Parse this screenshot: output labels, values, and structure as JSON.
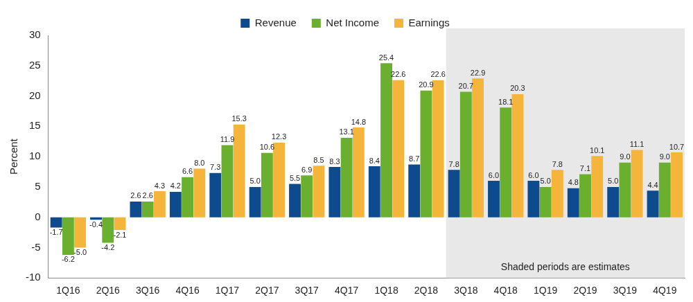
{
  "chart_data": {
    "type": "bar",
    "categories": [
      "1Q16",
      "2Q16",
      "3Q16",
      "4Q16",
      "1Q17",
      "2Q17",
      "3Q17",
      "4Q17",
      "1Q18",
      "2Q18",
      "3Q18",
      "4Q18",
      "1Q19",
      "2Q19",
      "3Q19",
      "4Q19"
    ],
    "series": [
      {
        "name": "Revenue",
        "color": "#0d4a8e",
        "values": [
          -1.7,
          -0.4,
          2.6,
          4.2,
          7.3,
          5.0,
          5.5,
          8.3,
          8.4,
          8.7,
          7.8,
          6.0,
          6.0,
          4.8,
          5.0,
          4.4
        ],
        "value_labels": [
          "-1.7",
          "-0.4",
          "2.6",
          "4.2",
          "7.3",
          "5.0",
          "5.5",
          "8.3",
          "8.4",
          "8.7",
          "7.8",
          "6.0",
          "6.0",
          "4.8",
          "5.0",
          "4.4"
        ]
      },
      {
        "name": "Net Income",
        "color": "#6aaf2d",
        "values": [
          -6.2,
          -4.2,
          2.6,
          6.6,
          11.9,
          10.6,
          6.9,
          13.1,
          25.4,
          20.9,
          20.7,
          18.1,
          5.0,
          7.1,
          9.0,
          9.0
        ],
        "value_labels": [
          "-6.2",
          "-4.2",
          "2.6",
          "6.6",
          "11.9",
          "10.6",
          "6.9",
          "13.1",
          "25.4",
          "20.9",
          "20.7",
          "18.1",
          "5.0",
          "7.1",
          "9.0",
          "9.0"
        ]
      },
      {
        "name": "Earnings",
        "color": "#f4b53a",
        "values": [
          -5.0,
          -2.1,
          4.3,
          8.0,
          15.3,
          12.3,
          8.5,
          14.8,
          22.6,
          22.6,
          22.9,
          20.3,
          7.8,
          10.1,
          11.1,
          10.7
        ],
        "value_labels": [
          "-5.0",
          "-2.1",
          "4.3",
          "8.0",
          "15.3",
          "12.3",
          "8.5",
          "14.8",
          "22.6",
          "22.6",
          "22.9",
          "20.3",
          "7.8",
          "10.1",
          "11.1",
          "10.7"
        ]
      }
    ],
    "ylabel": "Percent",
    "ylim": [
      -10,
      30
    ],
    "yticks": [
      -10,
      -5,
      0,
      5,
      10,
      15,
      20,
      25,
      30
    ],
    "grid": false,
    "legend": "top",
    "data_labels": true,
    "annotations": [
      {
        "text": "Shaded periods are estimates",
        "from": "3Q18",
        "to": "4Q19"
      }
    ]
  }
}
